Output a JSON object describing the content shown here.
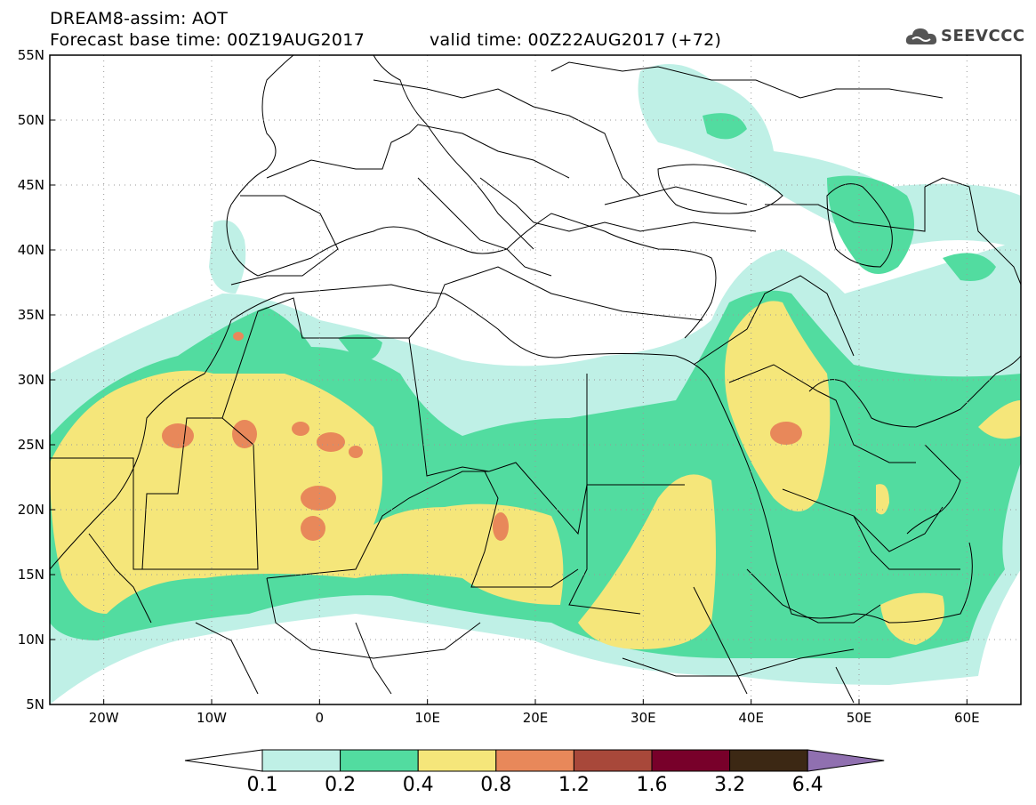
{
  "header": {
    "title": "DREAM8-assim: AOT",
    "forecast_base": "Forecast base time: 00Z19AUG2017",
    "valid_time": "valid time: 00Z22AUG2017 (+72)",
    "logo_text": "SEEVCCC"
  },
  "map": {
    "lat_labels": [
      "55N",
      "50N",
      "45N",
      "40N",
      "35N",
      "30N",
      "25N",
      "20N",
      "15N",
      "10N",
      "5N"
    ],
    "lon_labels": [
      "20W",
      "10W",
      "0",
      "10E",
      "20E",
      "30E",
      "40E",
      "50E",
      "60E"
    ],
    "extent": {
      "lon_min": -25,
      "lon_max": 65,
      "lat_min": 5,
      "lat_max": 55
    }
  },
  "colorbar": {
    "labels": [
      "0.1",
      "0.2",
      "0.4",
      "0.8",
      "1.2",
      "1.6",
      "3.2",
      "6.4"
    ],
    "colors": [
      "#ffffff",
      "#bff0e6",
      "#52dca0",
      "#f5e67a",
      "#e8885a",
      "#a8483a",
      "#78002a",
      "#3c2814",
      "#9070b0"
    ]
  }
}
